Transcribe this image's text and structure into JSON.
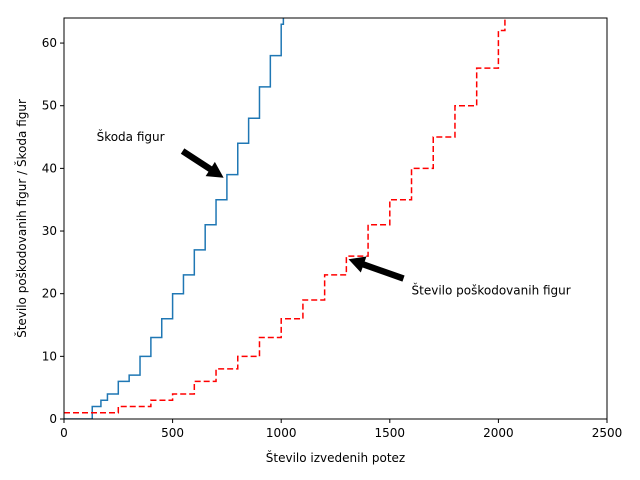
{
  "chart_data": {
    "type": "line",
    "title": "",
    "xlabel": "Število izvedenih potez",
    "ylabel": "Število poškodovanih figur / Škoda figur",
    "xlim": [
      0,
      2500
    ],
    "ylim": [
      0,
      64
    ],
    "xticks": [
      0,
      500,
      1000,
      1500,
      2000,
      2500
    ],
    "yticks": [
      0,
      10,
      20,
      30,
      40,
      50,
      60
    ],
    "grid": false,
    "legend": "none",
    "series": [
      {
        "color": "#1f77b4",
        "style": "solid-step",
        "x": [
          0,
          60,
          100,
          130,
          170,
          200,
          250,
          300,
          350,
          400,
          450,
          500,
          550,
          600,
          650,
          700,
          750,
          800,
          850,
          900,
          950,
          1000,
          1010
        ],
        "y": [
          0,
          0,
          0,
          2,
          3,
          4,
          6,
          7,
          10,
          13,
          16,
          20,
          23,
          27,
          31,
          35,
          39,
          44,
          48,
          53,
          58,
          63,
          64
        ]
      },
      {
        "color": "#ff0000",
        "style": "dashed-step",
        "x": [
          0,
          100,
          150,
          200,
          250,
          300,
          350,
          400,
          450,
          500,
          600,
          700,
          800,
          900,
          1000,
          1100,
          1200,
          1300,
          1400,
          1500,
          1600,
          1700,
          1800,
          1900,
          2000,
          2030
        ],
        "y": [
          1,
          1,
          1,
          1,
          2,
          2,
          2,
          3,
          3,
          4,
          6,
          8,
          10,
          13,
          16,
          19,
          23,
          26,
          31,
          35,
          40,
          45,
          50,
          56,
          62,
          64
        ]
      }
    ],
    "annotations": [
      {
        "text": "Škoda figur",
        "text_xy": [
          150,
          45
        ],
        "arrow_to": [
          735,
          38.5
        ]
      },
      {
        "text": "Število poškodovanih figur",
        "text_xy": [
          1600,
          20.5
        ],
        "arrow_to": [
          1310,
          25.5
        ]
      }
    ]
  }
}
